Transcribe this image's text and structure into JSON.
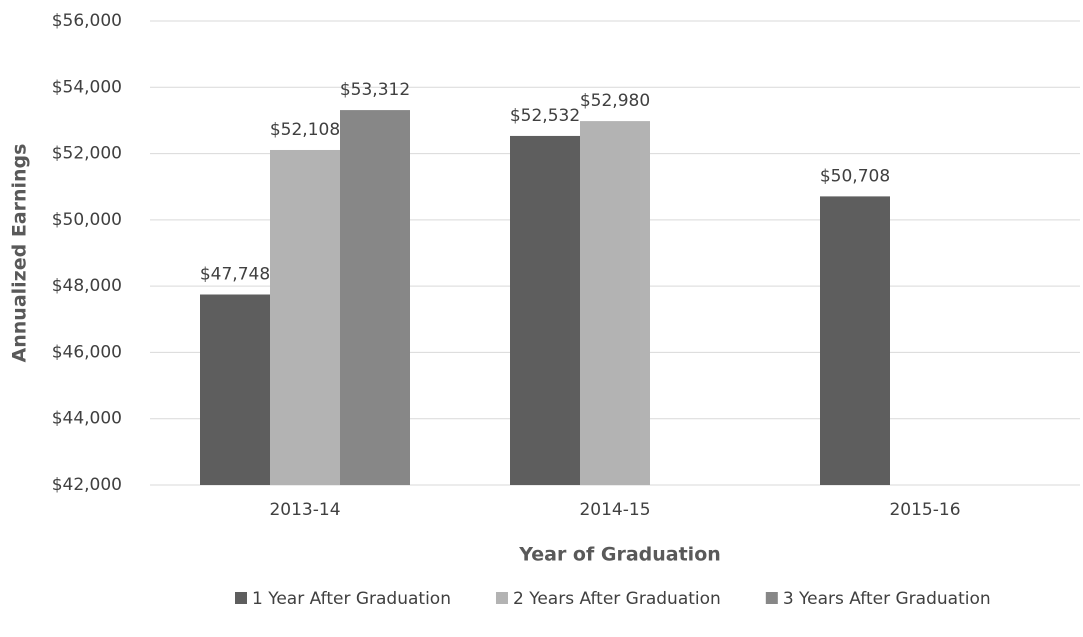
{
  "chart_data": {
    "type": "bar",
    "y_label": "Annualized Earnings",
    "x_label": "Year of Graduation",
    "categories": [
      "2013-14",
      "2014-15",
      "2015-16"
    ],
    "series": [
      {
        "name": "1 Year After Graduation",
        "color": "#5e5e5e",
        "values": [
          47748,
          52532,
          50708
        ],
        "value_labels": [
          "$47,748",
          "$52,532",
          "$50,708"
        ]
      },
      {
        "name": "2 Years After Graduation",
        "color": "#b3b3b3",
        "values": [
          52108,
          52980,
          null
        ],
        "value_labels": [
          "$52,108",
          "$52,980",
          null
        ]
      },
      {
        "name": "3 Years After Graduation",
        "color": "#878787",
        "values": [
          53312,
          null,
          null
        ],
        "value_labels": [
          "$53,312",
          null,
          null
        ]
      }
    ],
    "ylim": [
      42000,
      56000
    ],
    "yticks": [
      {
        "value": 42000,
        "label": "$42,000"
      },
      {
        "value": 44000,
        "label": "$44,000"
      },
      {
        "value": 46000,
        "label": "$46,000"
      },
      {
        "value": 48000,
        "label": "$48,000"
      },
      {
        "value": 50000,
        "label": "$50,000"
      },
      {
        "value": 52000,
        "label": "$52,000"
      },
      {
        "value": 54000,
        "label": "$54,000"
      },
      {
        "value": 56000,
        "label": "$56,000"
      }
    ],
    "grid": true,
    "legend": "bottom"
  }
}
